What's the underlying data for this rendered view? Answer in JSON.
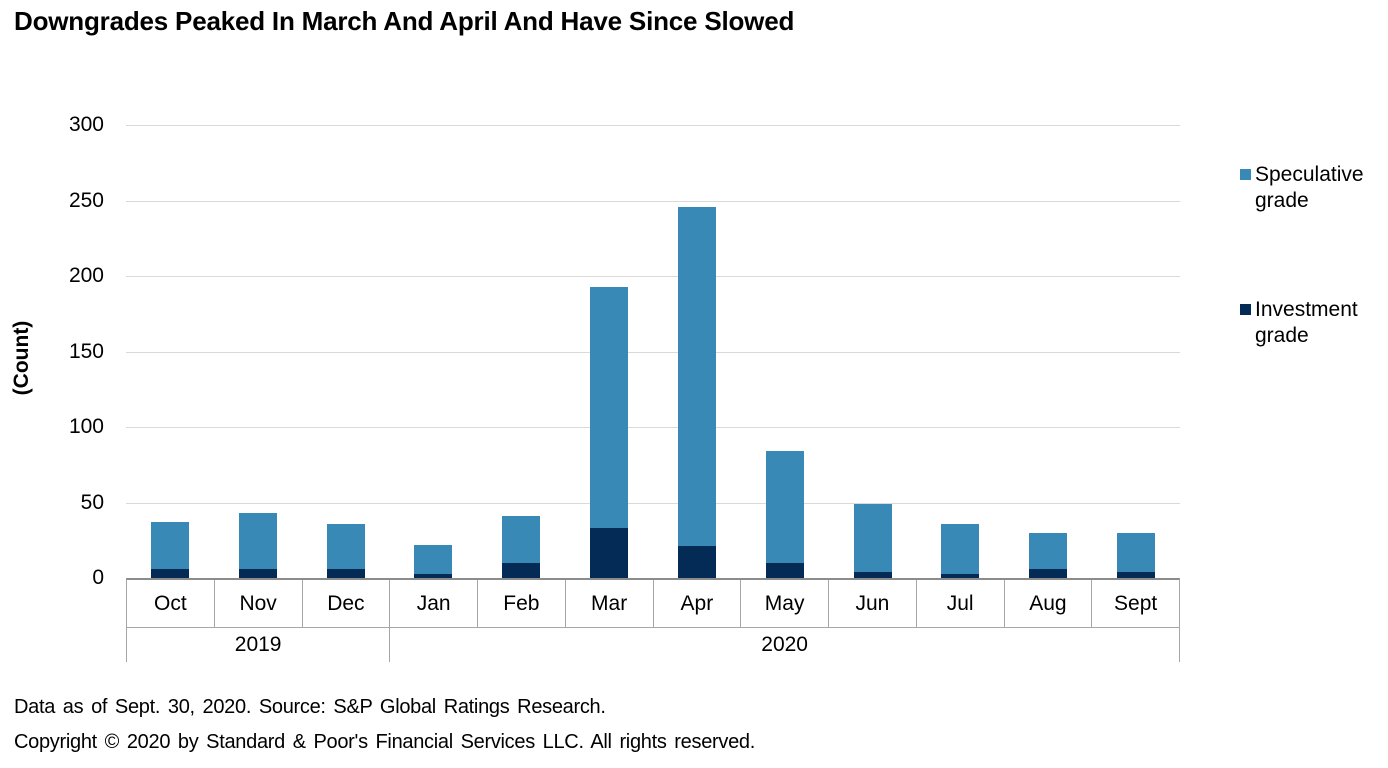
{
  "title": "Downgrades Peaked In March And April And Have Since Slowed",
  "y_axis": {
    "label": "(Count)",
    "ticks": [
      300,
      250,
      200,
      150,
      100,
      50,
      0
    ]
  },
  "legend": {
    "items": [
      {
        "label": "Speculative grade",
        "color": "#3889b6"
      },
      {
        "label": "Investment grade",
        "color": "#032b55"
      }
    ]
  },
  "chart_data": {
    "type": "bar",
    "stacked": true,
    "title": "Downgrades Peaked In March And April And Have Since Slowed",
    "xlabel": "",
    "ylabel": "(Count)",
    "ylim": [
      0,
      300
    ],
    "grid": true,
    "legend_position": "right",
    "categories": [
      "Oct",
      "Nov",
      "Dec",
      "Jan",
      "Feb",
      "Mar",
      "Apr",
      "May",
      "Jun",
      "Jul",
      "Aug",
      "Sept"
    ],
    "year_groups": [
      {
        "label": "2019",
        "months": 3
      },
      {
        "label": "2020",
        "months": 9
      }
    ],
    "series": [
      {
        "name": "Investment grade",
        "color": "#032b55",
        "values": [
          6,
          6,
          6,
          3,
          10,
          33,
          21,
          10,
          4,
          3,
          6,
          4
        ]
      },
      {
        "name": "Speculative grade",
        "color": "#3889b6",
        "values": [
          31,
          37,
          30,
          19,
          31,
          160,
          225,
          74,
          45,
          33,
          24,
          26
        ]
      }
    ],
    "totals": [
      37,
      43,
      36,
      22,
      41,
      193,
      246,
      84,
      49,
      36,
      30,
      30
    ]
  },
  "footer": {
    "line1": "Data as of Sept. 30, 2020. Source: S&P Global Ratings Research.",
    "line2": "Copyright © 2020 by Standard & Poor's Financial Services LLC. All rights reserved."
  },
  "colors": {
    "gridline": "#d9d9d9",
    "axis": "#a6a6a6",
    "speculative": "#3889b6",
    "investment": "#032b55"
  },
  "legend_layout": {
    "entry_tops": [
      162,
      297
    ]
  }
}
